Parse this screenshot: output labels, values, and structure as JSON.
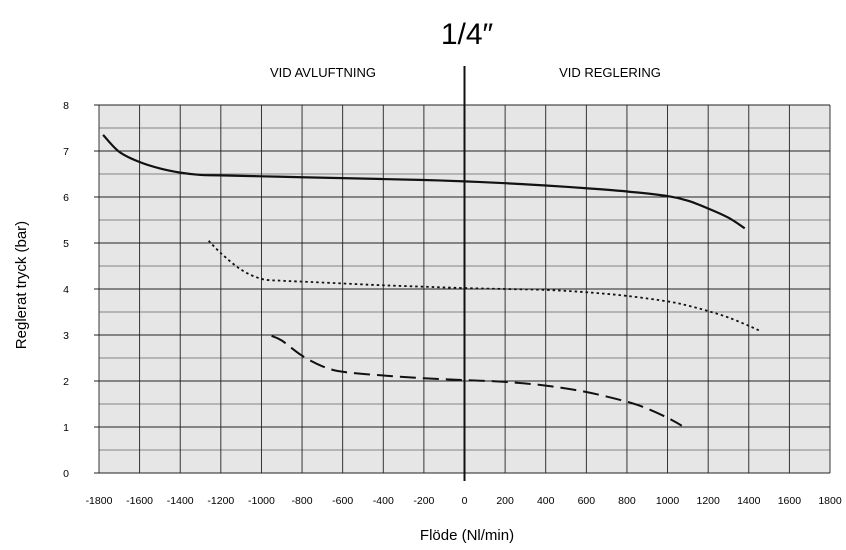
{
  "chart_data": {
    "type": "line",
    "title": "1/4″",
    "annotations": {
      "left": "VID AVLUFTNING",
      "right": "VID REGLERING"
    },
    "xlabel": "Flöde (Nl/min)",
    "ylabel": "Reglerat tryck  (bar)",
    "xlim": [
      -1800,
      1800
    ],
    "ylim": [
      0,
      8
    ],
    "x_ticks": [
      -1800,
      -1600,
      -1400,
      -1200,
      -1000,
      -800,
      -600,
      -400,
      -200,
      0,
      200,
      400,
      600,
      800,
      1000,
      1200,
      1400,
      1600,
      1800
    ],
    "y_ticks": [
      0,
      1,
      2,
      3,
      4,
      5,
      6,
      7,
      8
    ],
    "x_tick_labels": [
      "-1800",
      "-1600",
      "-1400",
      "-1200",
      "-1000",
      "-800",
      "-600",
      "-400",
      "-200",
      "0",
      "200",
      "400",
      "600",
      "800",
      "1000",
      "1200",
      "1400",
      "1600",
      "1800"
    ],
    "y_tick_labels": [
      "0",
      "1",
      "2",
      "3",
      "4",
      "5",
      "6",
      "7",
      "8"
    ],
    "grid": true,
    "minor_y_grid": true,
    "legend": "none",
    "series": [
      {
        "style": "solid",
        "x": [
          -1780,
          -1700,
          -1600,
          -1500,
          -1400,
          -1300,
          -1200,
          -1000,
          -800,
          -600,
          -400,
          -200,
          0,
          200,
          400,
          600,
          800,
          1000,
          1100,
          1200,
          1300,
          1380
        ],
        "y": [
          7.35,
          6.98,
          6.76,
          6.62,
          6.53,
          6.48,
          6.47,
          6.45,
          6.43,
          6.41,
          6.39,
          6.37,
          6.34,
          6.3,
          6.25,
          6.19,
          6.12,
          6.02,
          5.92,
          5.75,
          5.55,
          5.32
        ]
      },
      {
        "style": "dotted",
        "x": [
          -1260,
          -1200,
          -1100,
          -1000,
          -900,
          -800,
          -600,
          -400,
          -200,
          0,
          200,
          400,
          600,
          800,
          1000,
          1100,
          1200,
          1300,
          1400,
          1460
        ],
        "y": [
          5.05,
          4.78,
          4.42,
          4.22,
          4.18,
          4.16,
          4.12,
          4.08,
          4.05,
          4.02,
          4.0,
          3.98,
          3.93,
          3.85,
          3.73,
          3.64,
          3.52,
          3.38,
          3.2,
          3.08
        ]
      },
      {
        "style": "dashed",
        "x": [
          -950,
          -900,
          -800,
          -700,
          -600,
          -400,
          -200,
          0,
          200,
          400,
          600,
          800,
          900,
          1000,
          1070
        ],
        "y": [
          2.98,
          2.88,
          2.55,
          2.32,
          2.2,
          2.12,
          2.06,
          2.02,
          1.98,
          1.9,
          1.76,
          1.55,
          1.4,
          1.2,
          1.03
        ]
      }
    ]
  }
}
